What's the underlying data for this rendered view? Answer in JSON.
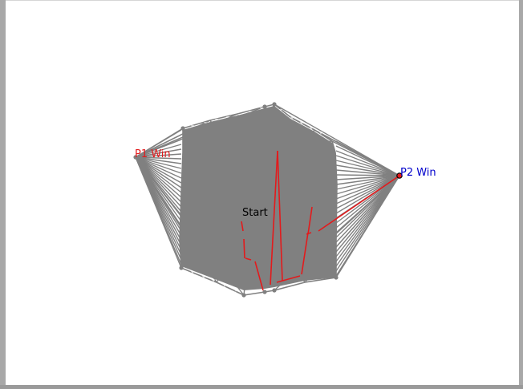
{
  "graph": {
    "labels": {
      "p1_win": "P1 Win",
      "p2_win": "P2 Win",
      "start": "Start"
    },
    "colors": {
      "edge": "#808080",
      "path": "#e31a1c",
      "p1_label": "#e31a1c",
      "p2_label": "#0000cc",
      "start_label": "#000000",
      "node_marker": "#000000"
    }
  }
}
